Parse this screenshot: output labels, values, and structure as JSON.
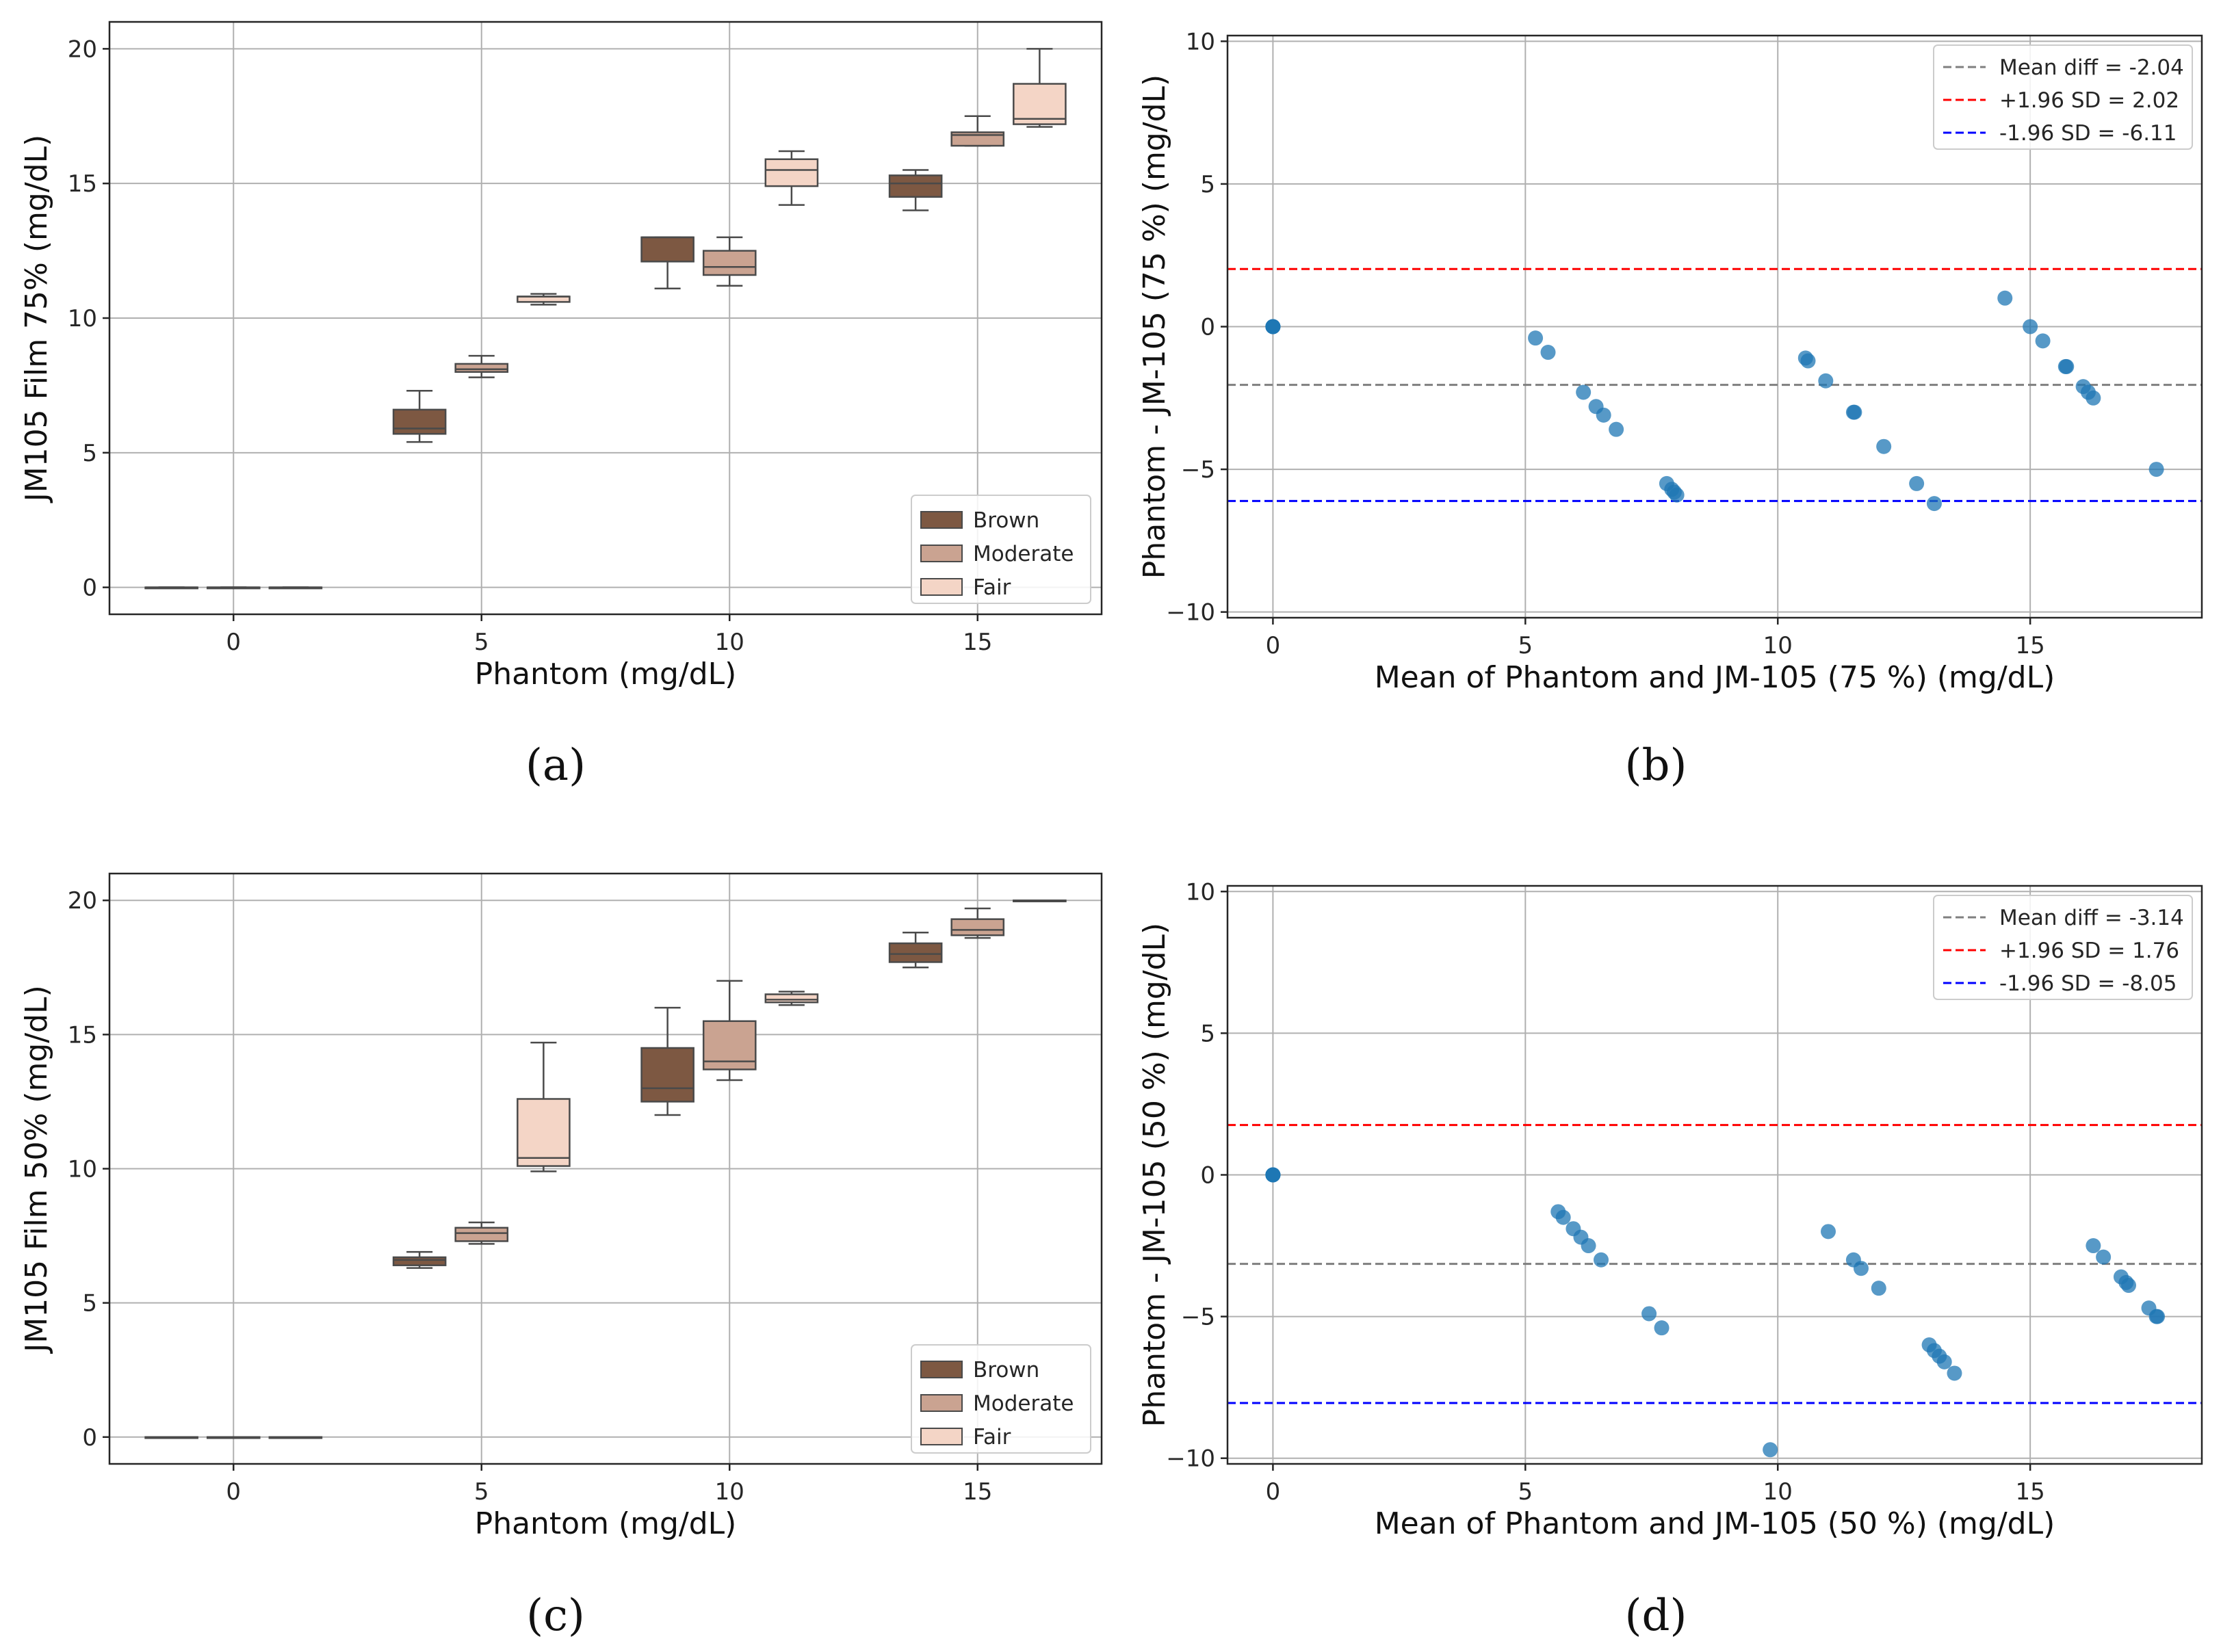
{
  "chart_data": [
    {
      "id": "a",
      "type": "box",
      "panel_label": "(a)",
      "xlabel": "Phantom (mg/dL)",
      "ylabel": "JM105 Film 75% (mg/dL)",
      "xlim": [
        -2.5,
        17.5
      ],
      "ylim": [
        -1,
        21
      ],
      "xticks": [
        0,
        5,
        10,
        15
      ],
      "yticks": [
        0,
        5,
        10,
        15,
        20
      ],
      "legend_position": "lower-right",
      "hue_colors": {
        "Brown": "#7d5842",
        "Moderate": "#caa391",
        "Fair": "#f4d5c6"
      },
      "legend": [
        "Brown",
        "Moderate",
        "Fair"
      ],
      "boxes": [
        {
          "phantom": 0,
          "group": "Brown",
          "whislo": 0,
          "q1": 0,
          "med": 0,
          "q3": 0,
          "whishi": 0
        },
        {
          "phantom": 0,
          "group": "Moderate",
          "whislo": 0,
          "q1": 0,
          "med": 0,
          "q3": 0,
          "whishi": 0
        },
        {
          "phantom": 0,
          "group": "Fair",
          "whislo": 0,
          "q1": 0,
          "med": 0,
          "q3": 0,
          "whishi": 0
        },
        {
          "phantom": 5,
          "group": "Brown",
          "whislo": 5.4,
          "q1": 5.7,
          "med": 5.9,
          "q3": 6.6,
          "whishi": 7.3
        },
        {
          "phantom": 5,
          "group": "Moderate",
          "whislo": 7.8,
          "q1": 8.0,
          "med": 8.1,
          "q3": 8.3,
          "whishi": 8.6
        },
        {
          "phantom": 5,
          "group": "Fair",
          "whislo": 10.5,
          "q1": 10.6,
          "med": 10.8,
          "q3": 10.8,
          "whishi": 10.9
        },
        {
          "phantom": 10,
          "group": "Brown",
          "whislo": 11.1,
          "q1": 12.1,
          "med": 13.0,
          "q3": 13.0,
          "whishi": 13.0
        },
        {
          "phantom": 10,
          "group": "Moderate",
          "whislo": 11.2,
          "q1": 11.6,
          "med": 11.9,
          "q3": 12.5,
          "whishi": 13.0
        },
        {
          "phantom": 10,
          "group": "Fair",
          "whislo": 14.2,
          "q1": 14.9,
          "med": 15.5,
          "q3": 15.9,
          "whishi": 16.2
        },
        {
          "phantom": 15,
          "group": "Brown",
          "whislo": 14.0,
          "q1": 14.5,
          "med": 15.0,
          "q3": 15.3,
          "whishi": 15.5
        },
        {
          "phantom": 15,
          "group": "Moderate",
          "whislo": 16.4,
          "q1": 16.4,
          "med": 16.8,
          "q3": 16.9,
          "whishi": 17.5
        },
        {
          "phantom": 15,
          "group": "Fair",
          "whislo": 17.1,
          "q1": 17.2,
          "med": 17.4,
          "q3": 18.7,
          "whishi": 20.0
        }
      ]
    },
    {
      "id": "b",
      "type": "scatter",
      "panel_label": "(b)",
      "xlabel": "Mean of Phantom and JM-105 (75 %) (mg/dL)",
      "ylabel": "Phantom - JM-105 (75 %) (mg/dL)",
      "xlim": [
        -0.9,
        18.4
      ],
      "ylim": [
        -10.2,
        10.2
      ],
      "xticks": [
        0,
        5,
        10,
        15
      ],
      "yticks": [
        -10,
        -5,
        0,
        5,
        10
      ],
      "legend_position": "top-right",
      "point_color": "#1f77b4",
      "lines": [
        {
          "label": "Mean diff = -2.04",
          "value": -2.04,
          "color": "#7f7f7f"
        },
        {
          "label": "+1.96 SD = 2.02",
          "value": 2.02,
          "color": "#ff0000"
        },
        {
          "label": "-1.96 SD = -6.11",
          "value": -6.11,
          "color": "#0000ff"
        }
      ],
      "points": [
        [
          0,
          0
        ],
        [
          0,
          0
        ],
        [
          0,
          0
        ],
        [
          0,
          0
        ],
        [
          0,
          0
        ],
        [
          5.2,
          -0.4
        ],
        [
          5.45,
          -0.9
        ],
        [
          6.15,
          -2.3
        ],
        [
          6.4,
          -2.8
        ],
        [
          6.55,
          -3.1
        ],
        [
          6.8,
          -3.6
        ],
        [
          7.8,
          -5.5
        ],
        [
          7.9,
          -5.7
        ],
        [
          7.95,
          -5.8
        ],
        [
          8.0,
          -5.9
        ],
        [
          10.55,
          -1.1
        ],
        [
          10.6,
          -1.2
        ],
        [
          10.95,
          -1.9
        ],
        [
          11.5,
          -3.0
        ],
        [
          11.52,
          -3.0
        ],
        [
          12.1,
          -4.2
        ],
        [
          12.75,
          -5.5
        ],
        [
          13.1,
          -6.2
        ],
        [
          14.5,
          1.0
        ],
        [
          15.0,
          0.0
        ],
        [
          15.25,
          -0.5
        ],
        [
          15.7,
          -1.4
        ],
        [
          15.72,
          -1.4
        ],
        [
          16.05,
          -2.1
        ],
        [
          16.15,
          -2.3
        ],
        [
          16.25,
          -2.5
        ],
        [
          17.5,
          -5.0
        ]
      ]
    },
    {
      "id": "c",
      "type": "box",
      "panel_label": "(c)",
      "xlabel": "Phantom (mg/dL)",
      "ylabel": "JM105 Film 50% (mg/dL)",
      "xlim": [
        -2.5,
        17.5
      ],
      "ylim": [
        -1,
        21
      ],
      "xticks": [
        0,
        5,
        10,
        15
      ],
      "yticks": [
        0,
        5,
        10,
        15,
        20
      ],
      "legend_position": "lower-right",
      "hue_colors": {
        "Brown": "#7d5842",
        "Moderate": "#caa391",
        "Fair": "#f4d5c6"
      },
      "legend": [
        "Brown",
        "Moderate",
        "Fair"
      ],
      "boxes": [
        {
          "phantom": 0,
          "group": "Brown",
          "whislo": 0,
          "q1": 0,
          "med": 0,
          "q3": 0,
          "whishi": 0
        },
        {
          "phantom": 0,
          "group": "Moderate",
          "whislo": 0,
          "q1": 0,
          "med": 0,
          "q3": 0,
          "whishi": 0
        },
        {
          "phantom": 0,
          "group": "Fair",
          "whislo": 0,
          "q1": 0,
          "med": 0,
          "q3": 0,
          "whishi": 0
        },
        {
          "phantom": 5,
          "group": "Brown",
          "whislo": 6.3,
          "q1": 6.4,
          "med": 6.6,
          "q3": 6.7,
          "whishi": 6.9
        },
        {
          "phantom": 5,
          "group": "Moderate",
          "whislo": 7.2,
          "q1": 7.3,
          "med": 7.6,
          "q3": 7.8,
          "whishi": 8.0
        },
        {
          "phantom": 5,
          "group": "Fair",
          "whislo": 9.9,
          "q1": 10.1,
          "med": 10.4,
          "q3": 12.6,
          "whishi": 14.7
        },
        {
          "phantom": 10,
          "group": "Brown",
          "whislo": 12.0,
          "q1": 12.5,
          "med": 13.0,
          "q3": 14.5,
          "whishi": 16.0
        },
        {
          "phantom": 10,
          "group": "Moderate",
          "whislo": 13.3,
          "q1": 13.7,
          "med": 14.0,
          "q3": 15.5,
          "whishi": 17.0
        },
        {
          "phantom": 10,
          "group": "Fair",
          "whislo": 16.1,
          "q1": 16.2,
          "med": 16.3,
          "q3": 16.5,
          "whishi": 16.6
        },
        {
          "phantom": 15,
          "group": "Brown",
          "whislo": 17.5,
          "q1": 17.7,
          "med": 18.0,
          "q3": 18.4,
          "whishi": 18.8
        },
        {
          "phantom": 15,
          "group": "Moderate",
          "whislo": 18.6,
          "q1": 18.7,
          "med": 18.9,
          "q3": 19.3,
          "whishi": 19.7
        },
        {
          "phantom": 15,
          "group": "Fair",
          "whislo": 20.0,
          "q1": 20.0,
          "med": 20.0,
          "q3": 20.0,
          "whishi": 20.0
        }
      ]
    },
    {
      "id": "d",
      "type": "scatter",
      "panel_label": "(d)",
      "xlabel": "Mean of Phantom and JM-105 (50 %) (mg/dL)",
      "ylabel": "Phantom - JM-105 (50 %) (mg/dL)",
      "xlim": [
        -0.9,
        18.4
      ],
      "ylim": [
        -10.2,
        10.2
      ],
      "xticks": [
        0,
        5,
        10,
        15
      ],
      "yticks": [
        -10,
        -5,
        0,
        5,
        10
      ],
      "legend_position": "top-right",
      "point_color": "#1f77b4",
      "lines": [
        {
          "label": "Mean diff = -3.14",
          "value": -3.14,
          "color": "#7f7f7f"
        },
        {
          "label": "+1.96 SD = 1.76",
          "value": 1.76,
          "color": "#ff0000"
        },
        {
          "label": "-1.96 SD = -8.05",
          "value": -8.05,
          "color": "#0000ff"
        }
      ],
      "points": [
        [
          0,
          0
        ],
        [
          0,
          0
        ],
        [
          0,
          0
        ],
        [
          0,
          0
        ],
        [
          0,
          0
        ],
        [
          5.65,
          -1.3
        ],
        [
          5.75,
          -1.5
        ],
        [
          5.95,
          -1.9
        ],
        [
          6.1,
          -2.2
        ],
        [
          6.25,
          -2.5
        ],
        [
          6.5,
          -3.0
        ],
        [
          7.45,
          -4.9
        ],
        [
          7.7,
          -5.4
        ],
        [
          9.85,
          -9.7
        ],
        [
          11.0,
          -2.0
        ],
        [
          11.5,
          -3.0
        ],
        [
          11.65,
          -3.3
        ],
        [
          12.0,
          -4.0
        ],
        [
          13.0,
          -6.0
        ],
        [
          13.1,
          -6.2
        ],
        [
          13.2,
          -6.4
        ],
        [
          13.3,
          -6.6
        ],
        [
          13.5,
          -7.0
        ],
        [
          16.25,
          -2.5
        ],
        [
          16.45,
          -2.9
        ],
        [
          16.8,
          -3.6
        ],
        [
          16.9,
          -3.8
        ],
        [
          16.95,
          -3.9
        ],
        [
          17.35,
          -4.7
        ],
        [
          17.5,
          -5.0
        ],
        [
          17.52,
          -5.0
        ]
      ]
    }
  ]
}
